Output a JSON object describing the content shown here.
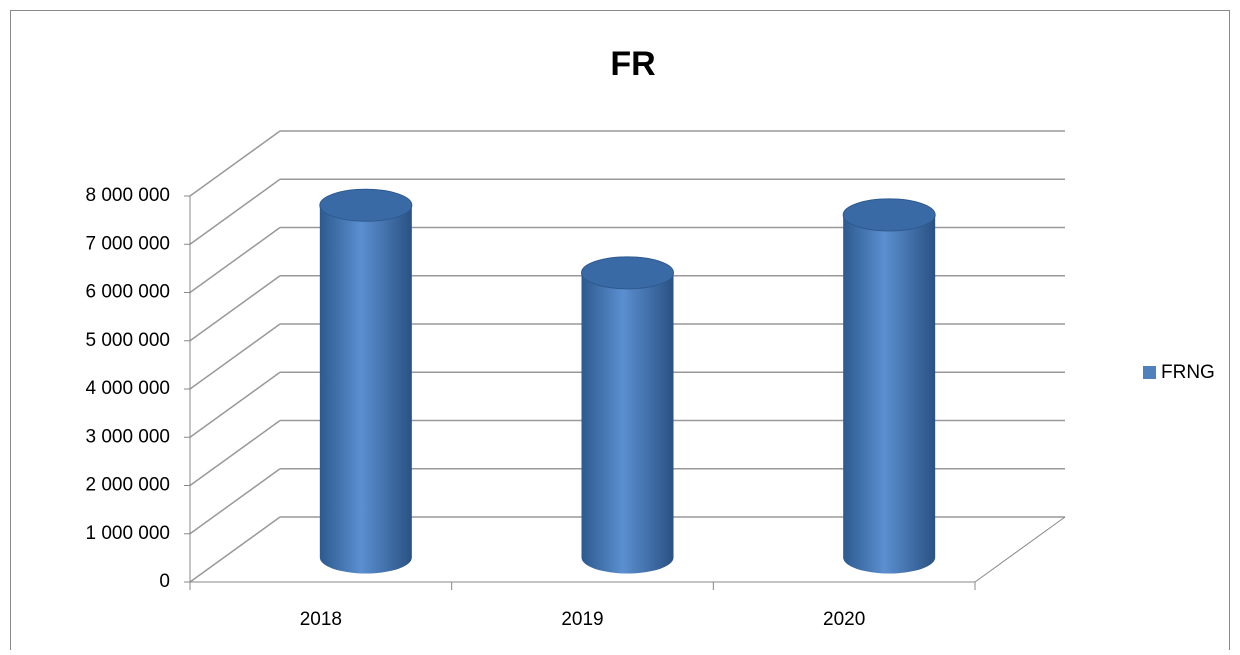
{
  "chart_data": {
    "type": "bar",
    "title": "FR",
    "categories": [
      "2018",
      "2019",
      "2020"
    ],
    "series": [
      {
        "name": "FRNG",
        "color": "#4f81bd",
        "values": [
          7300000,
          5900000,
          7100000
        ]
      }
    ],
    "ylim": [
      0,
      8000000
    ],
    "yticks": [
      0,
      {
        "value": 1000000,
        "label": "1 000 000"
      },
      {
        "value": 2000000,
        "label": "2 000 000"
      },
      {
        "value": 3000000,
        "label": "3 000 000"
      },
      {
        "value": 4000000,
        "label": "4 000 000"
      },
      {
        "value": 5000000,
        "label": "5 000 000"
      },
      {
        "value": 6000000,
        "label": "6 000 000"
      },
      {
        "value": 7000000,
        "label": "7 000 000"
      },
      {
        "value": 8000000,
        "label": "8 000 000"
      }
    ],
    "grid": true,
    "legend": "right"
  }
}
